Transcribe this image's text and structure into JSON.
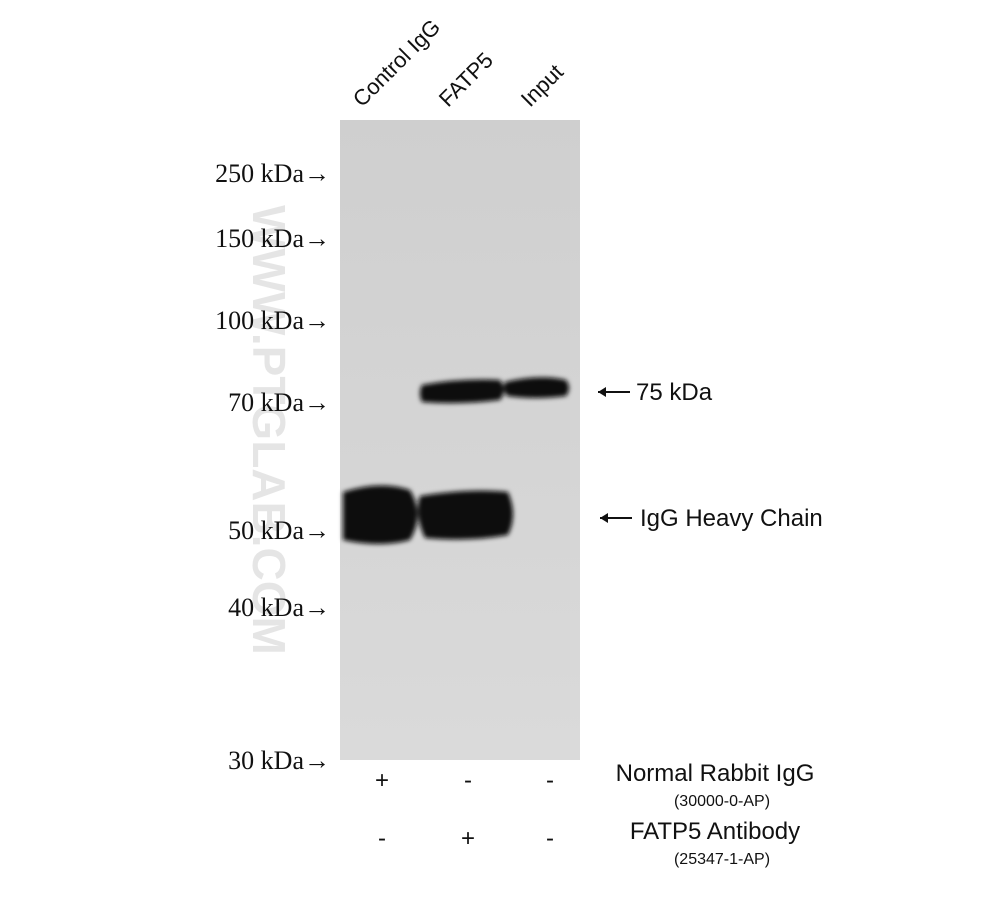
{
  "lanes": [
    "Control IgG",
    "FATP5",
    "Input"
  ],
  "markers": [
    "250 kDa→",
    "150 kDa→",
    "100 kDa→",
    "70 kDa→",
    "50 kDa→",
    "40 kDa→",
    "30 kDa→"
  ],
  "annotations": [
    "75 kDa",
    "IgG Heavy Chain"
  ],
  "watermark": "WWW.PTGLAB.COM",
  "treatments": [
    {
      "name": "Normal Rabbit IgG",
      "catalog": "(30000-0-AP)",
      "signs": [
        "+",
        "-",
        "-"
      ]
    },
    {
      "name": "FATP5 Antibody",
      "catalog": "(25347-1-AP)",
      "signs": [
        "-",
        "+",
        "-"
      ]
    }
  ]
}
